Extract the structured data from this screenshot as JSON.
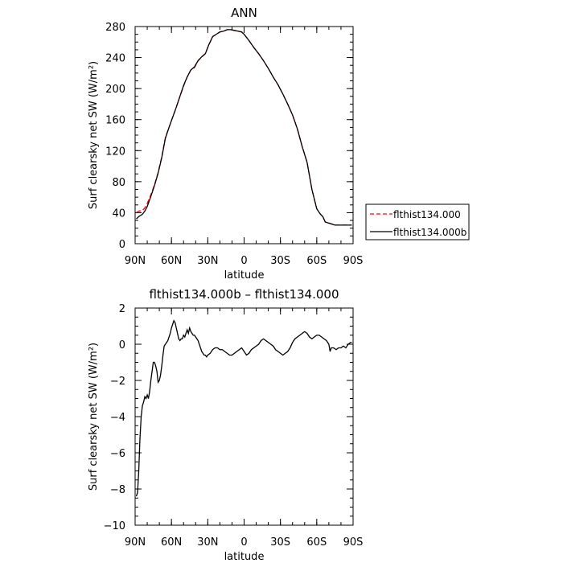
{
  "chart_data": [
    {
      "type": "line",
      "title": "ANN",
      "xlabel": "latitude",
      "ylabel": "Surf clearsky net SW (W/m²)",
      "x_ticks": [
        "90N",
        "60N",
        "30N",
        "0",
        "30S",
        "60S",
        "90S"
      ],
      "x_tick_values": [
        90,
        60,
        30,
        0,
        -30,
        -60,
        -90
      ],
      "y_ticks": [
        "0",
        "40",
        "80",
        "120",
        "160",
        "200",
        "240",
        "280"
      ],
      "y_tick_values": [
        0,
        40,
        80,
        120,
        160,
        200,
        240,
        280
      ],
      "xlim": [
        90,
        -90
      ],
      "ylim": [
        0,
        280
      ],
      "legend_position": "right",
      "series": [
        {
          "name": "flthist134.000",
          "color": "#ff0000",
          "dash": "dashed",
          "x": [
            89,
            87,
            84,
            82,
            80,
            77,
            74,
            71,
            68,
            65,
            62,
            59,
            56,
            53,
            50,
            47,
            44,
            41,
            38,
            35,
            32,
            29,
            26,
            23,
            20,
            17,
            14,
            11,
            8,
            5,
            2,
            0,
            -4,
            -8,
            -12,
            -16,
            -20,
            -24,
            -28,
            -32,
            -36,
            -40,
            -44,
            -48,
            -52,
            -56,
            -60,
            -63,
            -65,
            -67,
            -69,
            -71,
            -73,
            -75,
            -77,
            -79,
            -81,
            -83,
            -86,
            -89
          ],
          "y": [
            40,
            42,
            43,
            46,
            52,
            63,
            76,
            92,
            112,
            137,
            150,
            163,
            176,
            190,
            203,
            215,
            224,
            227,
            236,
            241,
            245,
            257,
            267,
            270,
            273,
            274,
            276,
            276,
            275,
            274,
            273,
            270,
            262,
            253,
            245,
            236,
            226,
            215,
            205,
            193,
            180,
            166,
            148,
            125,
            105,
            70,
            45,
            38,
            35,
            28,
            27,
            26,
            25,
            24,
            24,
            24,
            24,
            24,
            24,
            24
          ]
        },
        {
          "name": "flthist134.000b",
          "color": "#000000",
          "dash": "solid",
          "x": [
            89,
            87,
            84,
            82,
            80,
            77,
            74,
            71,
            68,
            65,
            62,
            59,
            56,
            53,
            50,
            47,
            44,
            41,
            38,
            35,
            32,
            29,
            26,
            23,
            20,
            17,
            14,
            11,
            8,
            5,
            2,
            0,
            -4,
            -8,
            -12,
            -16,
            -20,
            -24,
            -28,
            -32,
            -36,
            -40,
            -44,
            -48,
            -52,
            -56,
            -60,
            -63,
            -65,
            -67,
            -69,
            -71,
            -73,
            -75,
            -77,
            -79,
            -81,
            -83,
            -86,
            -89
          ],
          "y": [
            32,
            35,
            38,
            42,
            48,
            61,
            75,
            91,
            111,
            136,
            150,
            163,
            176,
            190,
            204,
            215,
            224,
            228,
            236,
            241,
            245,
            257,
            267,
            270,
            273,
            274,
            276,
            276,
            275,
            274,
            273,
            270,
            262,
            253,
            245,
            236,
            226,
            215,
            205,
            193,
            180,
            166,
            148,
            125,
            105,
            70,
            45,
            38,
            35,
            28,
            27,
            26,
            25,
            24,
            24,
            24,
            24,
            24,
            24,
            24
          ]
        }
      ]
    },
    {
      "type": "line",
      "title": "flthist134.000b – flthist134.000",
      "xlabel": "latitude",
      "ylabel": "Surf clearsky net SW (W/m²)",
      "x_ticks": [
        "90N",
        "60N",
        "30N",
        "0",
        "30S",
        "60S",
        "90S"
      ],
      "x_tick_values": [
        90,
        60,
        30,
        0,
        -30,
        -60,
        -90
      ],
      "y_ticks": [
        "2",
        "0",
        "−2",
        "−4",
        "−6",
        "−8",
        "−10"
      ],
      "y_tick_values": [
        2,
        0,
        -2,
        -4,
        -6,
        -8,
        -10
      ],
      "xlim": [
        90,
        -90
      ],
      "ylim": [
        -10,
        2
      ],
      "series": [
        {
          "color": "#000000",
          "dash": "solid",
          "x": [
            89,
            88,
            87,
            86,
            85,
            84,
            83,
            82,
            81,
            80,
            79,
            78,
            77,
            76,
            75,
            74,
            73,
            72,
            71,
            70,
            69,
            68,
            67,
            66,
            65,
            64,
            63,
            62,
            61,
            60,
            59,
            58,
            57,
            56,
            55,
            54,
            53,
            52,
            51,
            50,
            49,
            48,
            47,
            46,
            45,
            44,
            43,
            42,
            41,
            40,
            39,
            38,
            37,
            36,
            35,
            34,
            33,
            32,
            31,
            30,
            28,
            26,
            24,
            22,
            20,
            18,
            16,
            14,
            12,
            10,
            8,
            6,
            4,
            2,
            0,
            -2,
            -4,
            -6,
            -8,
            -10,
            -12,
            -14,
            -16,
            -18,
            -20,
            -22,
            -24,
            -26,
            -28,
            -30,
            -32,
            -34,
            -36,
            -38,
            -40,
            -42,
            -44,
            -46,
            -48,
            -50,
            -52,
            -54,
            -56,
            -58,
            -60,
            -62,
            -64,
            -66,
            -68,
            -70,
            -71,
            -72,
            -74,
            -76,
            -78,
            -80,
            -82,
            -84,
            -86,
            -88,
            -89
          ],
          "y": [
            -8.4,
            -8.2,
            -7.0,
            -5.2,
            -4.0,
            -3.4,
            -3.2,
            -2.9,
            -3.0,
            -2.8,
            -3.0,
            -2.6,
            -2.0,
            -1.5,
            -1.0,
            -1.0,
            -1.2,
            -1.5,
            -2.1,
            -2.0,
            -1.7,
            -1.2,
            -0.6,
            -0.1,
            0.0,
            0.1,
            0.2,
            0.4,
            0.6,
            0.9,
            1.1,
            1.3,
            1.2,
            0.9,
            0.6,
            0.3,
            0.2,
            0.3,
            0.3,
            0.5,
            0.4,
            0.6,
            0.8,
            0.6,
            0.9,
            0.7,
            0.6,
            0.5,
            0.5,
            0.4,
            0.3,
            0.2,
            0.0,
            -0.2,
            -0.4,
            -0.5,
            -0.6,
            -0.6,
            -0.7,
            -0.6,
            -0.5,
            -0.3,
            -0.2,
            -0.2,
            -0.3,
            -0.3,
            -0.4,
            -0.5,
            -0.6,
            -0.6,
            -0.5,
            -0.4,
            -0.3,
            -0.2,
            -0.4,
            -0.6,
            -0.5,
            -0.3,
            -0.2,
            -0.1,
            0.0,
            0.2,
            0.3,
            0.2,
            0.1,
            0.0,
            -0.1,
            -0.3,
            -0.4,
            -0.5,
            -0.6,
            -0.5,
            -0.4,
            -0.2,
            0.1,
            0.3,
            0.4,
            0.5,
            0.6,
            0.7,
            0.6,
            0.4,
            0.3,
            0.4,
            0.5,
            0.5,
            0.4,
            0.3,
            0.2,
            0.0,
            -0.4,
            -0.2,
            -0.2,
            -0.3,
            -0.2,
            -0.2,
            -0.1,
            -0.2,
            0.0,
            0.1,
            0.1
          ]
        }
      ]
    }
  ]
}
